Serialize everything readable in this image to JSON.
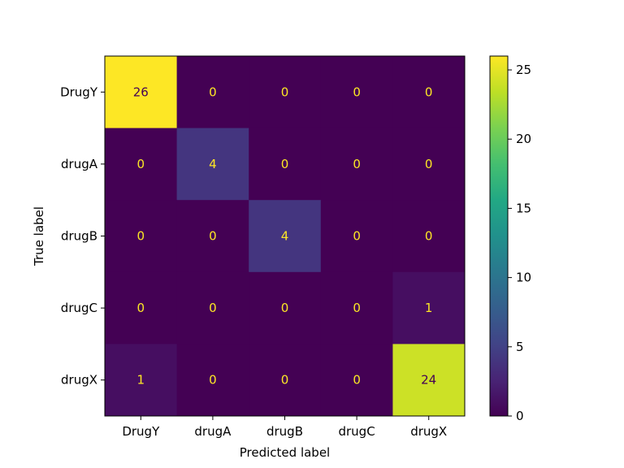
{
  "chart_data": {
    "type": "heatmap",
    "xlabel": "Predicted label",
    "ylabel": "True label",
    "x_categories": [
      "DrugY",
      "drugA",
      "drugB",
      "drugC",
      "drugX"
    ],
    "y_categories": [
      "DrugY",
      "drugA",
      "drugB",
      "drugC",
      "drugX"
    ],
    "values": [
      [
        26,
        0,
        0,
        0,
        0
      ],
      [
        0,
        4,
        0,
        0,
        0
      ],
      [
        0,
        0,
        4,
        0,
        0
      ],
      [
        0,
        0,
        0,
        0,
        1
      ],
      [
        1,
        0,
        0,
        0,
        24
      ]
    ],
    "colormap": "viridis",
    "vmin": 0,
    "vmax": 26,
    "colorbar_ticks": [
      0,
      5,
      10,
      15,
      20,
      25
    ],
    "colors": {
      "low_text": "#fde725",
      "high_text": "#440154"
    }
  }
}
